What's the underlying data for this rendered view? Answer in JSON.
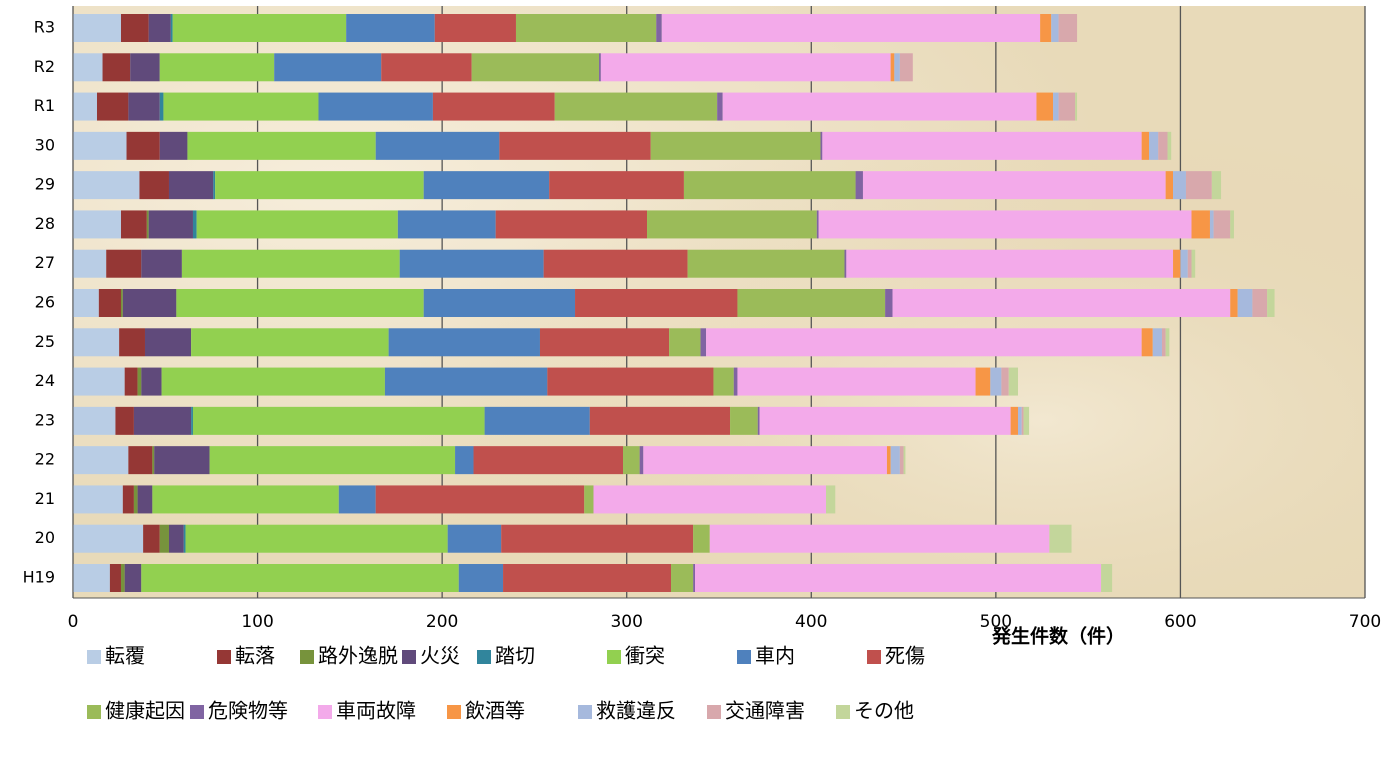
{
  "chart_data": {
    "type": "stacked_barh",
    "x_label": "発生件数（件）",
    "categories": [
      "R3",
      "R2",
      "R1",
      "30",
      "29",
      "28",
      "27",
      "26",
      "25",
      "24",
      "23",
      "22",
      "21",
      "20",
      "H19"
    ],
    "series": [
      {
        "name": "転覆",
        "color": "#b9cde5",
        "values": [
          26,
          16,
          13,
          29,
          36,
          26,
          18,
          14,
          25,
          28,
          23,
          30,
          27,
          38,
          20
        ]
      },
      {
        "name": "転落",
        "color": "#953735",
        "values": [
          15,
          15,
          17,
          18,
          16,
          14,
          19,
          12,
          14,
          7,
          10,
          13,
          6,
          9,
          6
        ]
      },
      {
        "name": "路外逸脱",
        "color": "#77933c",
        "values": [
          0,
          0,
          0,
          0,
          0,
          1,
          0,
          1,
          0,
          2,
          0,
          1,
          2,
          5,
          2
        ]
      },
      {
        "name": "火災",
        "color": "#604a7b",
        "values": [
          12,
          16,
          17,
          15,
          24,
          24,
          22,
          29,
          25,
          11,
          31,
          30,
          8,
          8,
          9
        ]
      },
      {
        "name": "踏切",
        "color": "#31859c",
        "values": [
          1,
          0,
          2,
          0,
          1,
          2,
          0,
          0,
          0,
          0,
          1,
          0,
          0,
          1,
          0
        ]
      },
      {
        "name": "衝突",
        "color": "#92d050",
        "values": [
          94,
          62,
          84,
          102,
          113,
          109,
          118,
          134,
          107,
          121,
          158,
          133,
          101,
          142,
          172
        ]
      },
      {
        "name": "車内",
        "color": "#4f81bd",
        "values": [
          48,
          58,
          62,
          67,
          68,
          53,
          78,
          82,
          82,
          88,
          57,
          10,
          20,
          29,
          24
        ]
      },
      {
        "name": "死傷",
        "color": "#c0504d",
        "values": [
          44,
          49,
          66,
          82,
          73,
          82,
          78,
          88,
          70,
          90,
          76,
          81,
          113,
          104,
          91
        ]
      },
      {
        "name": "健康起因",
        "color": "#9bbb59",
        "values": [
          76,
          69,
          88,
          92,
          93,
          92,
          85,
          80,
          17,
          11,
          15,
          9,
          5,
          9,
          12
        ]
      },
      {
        "name": "危険物等",
        "color": "#8064a2",
        "values": [
          3,
          1,
          3,
          1,
          4,
          1,
          1,
          4,
          3,
          2,
          1,
          2,
          0,
          0,
          1
        ]
      },
      {
        "name": "車両故障",
        "color": "#f3aaea",
        "values": [
          205,
          157,
          170,
          173,
          164,
          202,
          177,
          183,
          236,
          129,
          136,
          132,
          126,
          184,
          220
        ]
      },
      {
        "name": "飲酒等",
        "color": "#f79646",
        "values": [
          6,
          2,
          9,
          4,
          4,
          10,
          4,
          4,
          6,
          8,
          4,
          2,
          0,
          0,
          0
        ]
      },
      {
        "name": "救護違反",
        "color": "#a6b9dd",
        "values": [
          4,
          3,
          3,
          5,
          7,
          2,
          4,
          8,
          5,
          6,
          2,
          5,
          0,
          0,
          0
        ]
      },
      {
        "name": "交通障害",
        "color": "#d8a8ac",
        "values": [
          10,
          7,
          9,
          5,
          14,
          9,
          2,
          8,
          2,
          4,
          1,
          2,
          0,
          0,
          0
        ]
      },
      {
        "name": "その他",
        "color": "#c3d69b",
        "values": [
          0,
          0,
          1,
          2,
          5,
          2,
          2,
          4,
          2,
          5,
          3,
          1,
          5,
          12,
          6
        ]
      }
    ],
    "xlim": [
      0,
      700
    ],
    "xticks": [
      0,
      100,
      200,
      300,
      400,
      500,
      600,
      700
    ],
    "grid": true,
    "legend": "bottom"
  }
}
